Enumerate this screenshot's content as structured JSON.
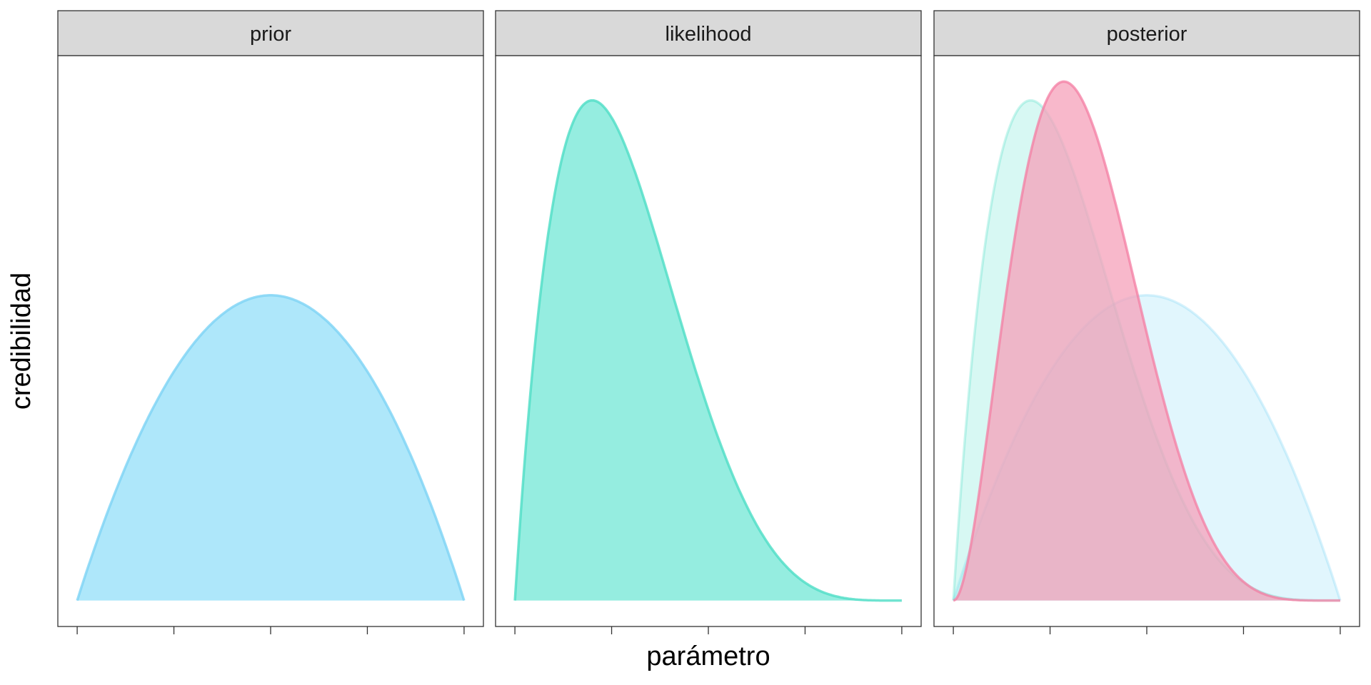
{
  "chart_data": {
    "type": "area",
    "xlabel": "parámetro",
    "ylabel": "credibilidad",
    "xlim": [
      0,
      1
    ],
    "x_ticks": [
      0,
      0.25,
      0.5,
      0.75,
      1
    ],
    "x_tick_labels_shown": false,
    "y_ticks_shown": false,
    "ylim": [
      0,
      2.55
    ],
    "colors": {
      "prior": {
        "fill": "#9AE1F9",
        "line": "#7DD3F5"
      },
      "likelihood": {
        "fill": "#7AE8D8",
        "line": "#4EDDC6"
      },
      "posterior": {
        "fill": "#F5A0BA",
        "line": "#F47EA3"
      }
    },
    "series": [
      {
        "name": "prior",
        "distribution": "beta",
        "a": 2,
        "b": 2,
        "peak_x": 0.5,
        "peak_y": 1.5
      },
      {
        "name": "likelihood",
        "distribution": "beta",
        "a": 2,
        "b": 5,
        "peak_x": 0.2,
        "peak_y": 2.46
      },
      {
        "name": "posterior",
        "distribution": "beta",
        "a": 3,
        "b": 6,
        "peak_x": 0.286,
        "peak_y": 2.55
      }
    ],
    "facets": [
      {
        "title": "prior",
        "layers": [
          {
            "series": "prior",
            "opacity": 0.8
          }
        ]
      },
      {
        "title": "likelihood",
        "layers": [
          {
            "series": "likelihood",
            "opacity": 0.8
          }
        ]
      },
      {
        "title": "posterior",
        "layers": [
          {
            "series": "prior",
            "opacity": 0.3
          },
          {
            "series": "likelihood",
            "opacity": 0.3
          },
          {
            "series": "posterior",
            "opacity": 0.75
          }
        ]
      }
    ]
  }
}
